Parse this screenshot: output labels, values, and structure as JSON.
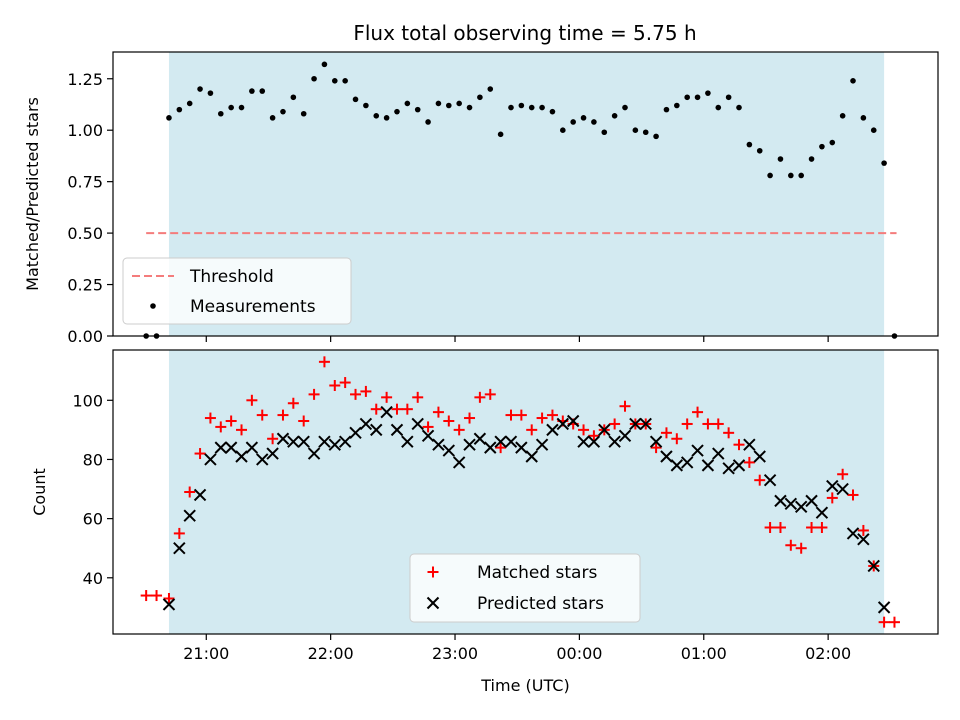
{
  "title": "Flux total observing time = 5.75 h",
  "colors": {
    "window": "#d3eaf1",
    "threshold": "#f47c7c",
    "measurement": "#000000",
    "matched": "#ff0000",
    "predicted": "#000000"
  },
  "x_ticks": [
    "21:00",
    "22:00",
    "23:00",
    "00:00",
    "01:00",
    "02:00"
  ],
  "xlabel": "Time (UTC)",
  "chart_data": [
    {
      "type": "scatter",
      "ylabel": "Matched/Predicted stars",
      "ylim": [
        0,
        1.38
      ],
      "yticks": [
        "0.00",
        "0.25",
        "0.50",
        "0.75",
        "1.00",
        "1.25"
      ],
      "xlim": [
        "20:15",
        "02:53"
      ],
      "observing_window": [
        "20:42",
        "02:27"
      ],
      "threshold": {
        "name": "Threshold",
        "value": 0.5,
        "x_range": [
          "20:31",
          "02:33"
        ]
      },
      "legend": {
        "placement": "lower-left",
        "entries": [
          "Threshold",
          "Measurements"
        ]
      },
      "series": [
        {
          "name": "Measurements",
          "x": [
            "20:31",
            "20:36",
            "20:42",
            "20:47",
            "20:52",
            "20:57",
            "21:02",
            "21:07",
            "21:12",
            "21:17",
            "21:22",
            "21:27",
            "21:32",
            "21:37",
            "21:42",
            "21:47",
            "21:52",
            "21:57",
            "22:02",
            "22:07",
            "22:12",
            "22:17",
            "22:22",
            "22:27",
            "22:32",
            "22:37",
            "22:42",
            "22:47",
            "22:52",
            "22:57",
            "23:02",
            "23:07",
            "23:12",
            "23:17",
            "23:22",
            "23:27",
            "23:32",
            "23:37",
            "23:42",
            "23:47",
            "23:52",
            "23:57",
            "00:02",
            "00:07",
            "00:12",
            "00:17",
            "00:22",
            "00:27",
            "00:32",
            "00:37",
            "00:42",
            "00:47",
            "00:52",
            "00:57",
            "01:02",
            "01:07",
            "01:12",
            "01:17",
            "01:22",
            "01:27",
            "01:32",
            "01:37",
            "01:42",
            "01:47",
            "01:52",
            "01:57",
            "02:02",
            "02:07",
            "02:12",
            "02:17",
            "02:22",
            "02:27",
            "02:32"
          ],
          "y": [
            0.0,
            0.0,
            1.06,
            1.1,
            1.13,
            1.2,
            1.18,
            1.08,
            1.11,
            1.11,
            1.19,
            1.19,
            1.06,
            1.09,
            1.16,
            1.08,
            1.25,
            1.32,
            1.24,
            1.24,
            1.15,
            1.12,
            1.07,
            1.06,
            1.09,
            1.13,
            1.1,
            1.04,
            1.13,
            1.12,
            1.13,
            1.11,
            1.16,
            1.2,
            0.98,
            1.11,
            1.12,
            1.11,
            1.11,
            1.09,
            1.0,
            1.04,
            1.06,
            1.04,
            0.99,
            1.07,
            1.11,
            1.0,
            0.99,
            0.97,
            1.1,
            1.12,
            1.16,
            1.16,
            1.18,
            1.11,
            1.16,
            1.11,
            0.93,
            0.9,
            0.78,
            0.86,
            0.78,
            0.78,
            0.86,
            0.92,
            0.94,
            1.07,
            1.24,
            1.06,
            1.0,
            0.84,
            0.0
          ]
        }
      ]
    },
    {
      "type": "scatter",
      "ylabel": "Count",
      "ylim": [
        21,
        117
      ],
      "yticks": [
        "40",
        "60",
        "80",
        "100"
      ],
      "xlim": [
        "20:15",
        "02:53"
      ],
      "observing_window": [
        "20:42",
        "02:27"
      ],
      "legend": {
        "placement": "lower-center",
        "entries": [
          "Matched stars",
          "Predicted stars"
        ]
      },
      "series": [
        {
          "name": "Matched stars",
          "marker": "plus",
          "x": [
            "20:31",
            "20:36",
            "20:42",
            "20:47",
            "20:52",
            "20:57",
            "21:02",
            "21:07",
            "21:12",
            "21:17",
            "21:22",
            "21:27",
            "21:32",
            "21:37",
            "21:42",
            "21:47",
            "21:52",
            "21:57",
            "22:02",
            "22:07",
            "22:12",
            "22:17",
            "22:22",
            "22:27",
            "22:32",
            "22:37",
            "22:42",
            "22:47",
            "22:52",
            "22:57",
            "23:02",
            "23:07",
            "23:12",
            "23:17",
            "23:22",
            "23:27",
            "23:32",
            "23:37",
            "23:42",
            "23:47",
            "23:52",
            "23:57",
            "00:02",
            "00:07",
            "00:12",
            "00:17",
            "00:22",
            "00:27",
            "00:32",
            "00:37",
            "00:42",
            "00:47",
            "00:52",
            "00:57",
            "01:02",
            "01:07",
            "01:12",
            "01:17",
            "01:22",
            "01:27",
            "01:32",
            "01:37",
            "01:42",
            "01:47",
            "01:52",
            "01:57",
            "02:02",
            "02:07",
            "02:12",
            "02:17",
            "02:22",
            "02:27",
            "02:32"
          ],
          "y": [
            34,
            34,
            33,
            55,
            69,
            82,
            94,
            91,
            93,
            90,
            100,
            95,
            87,
            95,
            99,
            93,
            102,
            113,
            105,
            106,
            102,
            103,
            97,
            101,
            97,
            97,
            101,
            91,
            96,
            93,
            90,
            94,
            101,
            102,
            84,
            95,
            95,
            90,
            94,
            95,
            93,
            92,
            90,
            88,
            90,
            92,
            98,
            92,
            92,
            84,
            89,
            87,
            92,
            96,
            92,
            92,
            89,
            85,
            79,
            73,
            57,
            57,
            51,
            50,
            57,
            57,
            67,
            75,
            68,
            56,
            44,
            25,
            25
          ]
        },
        {
          "name": "Predicted stars",
          "marker": "cross",
          "x": [
            "20:42",
            "20:47",
            "20:52",
            "20:57",
            "21:02",
            "21:07",
            "21:12",
            "21:17",
            "21:22",
            "21:27",
            "21:32",
            "21:37",
            "21:42",
            "21:47",
            "21:52",
            "21:57",
            "22:02",
            "22:07",
            "22:12",
            "22:17",
            "22:22",
            "22:27",
            "22:32",
            "22:37",
            "22:42",
            "22:47",
            "22:52",
            "22:57",
            "23:02",
            "23:07",
            "23:12",
            "23:17",
            "23:22",
            "23:27",
            "23:32",
            "23:37",
            "23:42",
            "23:47",
            "23:52",
            "23:57",
            "00:02",
            "00:07",
            "00:12",
            "00:17",
            "00:22",
            "00:27",
            "00:32",
            "00:37",
            "00:42",
            "00:47",
            "00:52",
            "00:57",
            "01:02",
            "01:07",
            "01:12",
            "01:17",
            "01:22",
            "01:27",
            "01:32",
            "01:37",
            "01:42",
            "01:47",
            "01:52",
            "01:57",
            "02:02",
            "02:07",
            "02:12",
            "02:17",
            "02:22",
            "02:27"
          ],
          "y": [
            31,
            50,
            61,
            68,
            80,
            84,
            84,
            81,
            84,
            80,
            82,
            87,
            86,
            86,
            82,
            86,
            85,
            86,
            89,
            92,
            90,
            96,
            90,
            86,
            92,
            88,
            85,
            83,
            79,
            85,
            87,
            84,
            86,
            86,
            84,
            81,
            85,
            90,
            92,
            93,
            86,
            86,
            90,
            86,
            88,
            92,
            92,
            86,
            81,
            78,
            79,
            83,
            78,
            82,
            77,
            78,
            85,
            81,
            73,
            66,
            65,
            64,
            66,
            62,
            71,
            70,
            55,
            53,
            44,
            30
          ]
        }
      ]
    }
  ]
}
